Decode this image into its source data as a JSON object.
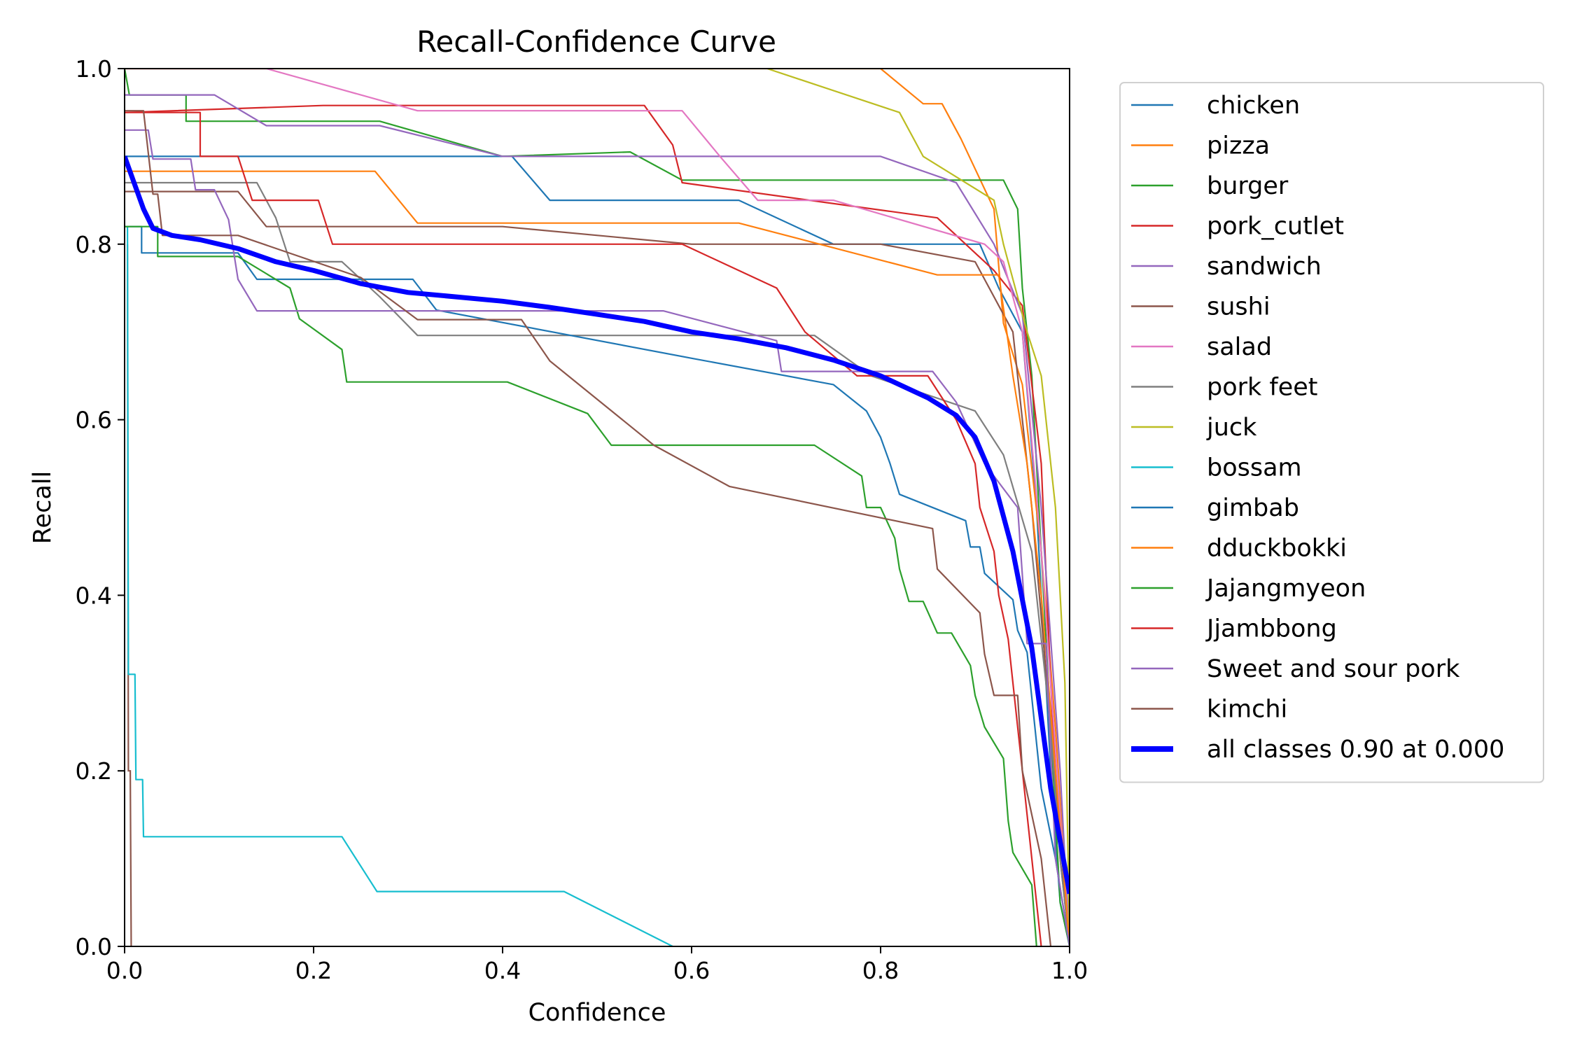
{
  "chart_data": {
    "type": "line",
    "title": "Recall-Confidence Curve",
    "xlabel": "Confidence",
    "ylabel": "Recall",
    "xlim": [
      0,
      1
    ],
    "ylim": [
      0,
      1
    ],
    "xticks": [
      "0.0",
      "0.2",
      "0.4",
      "0.6",
      "0.8",
      "1.0"
    ],
    "yticks": [
      "0.0",
      "0.2",
      "0.4",
      "0.6",
      "0.8",
      "1.0"
    ],
    "grid": false,
    "legend_position": "outside-right",
    "series": [
      {
        "name": "chicken",
        "color": "#1f77b4",
        "width": 1,
        "points": [
          [
            0,
            0.9
          ],
          [
            0.41,
            0.9
          ],
          [
            0.45,
            0.85
          ],
          [
            0.65,
            0.85
          ],
          [
            0.75,
            0.8
          ],
          [
            0.905,
            0.8
          ],
          [
            0.925,
            0.75
          ],
          [
            0.95,
            0.7
          ],
          [
            0.965,
            0.5
          ],
          [
            0.98,
            0.2
          ],
          [
            0.99,
            0.05
          ],
          [
            1.0,
            0.0
          ]
        ]
      },
      {
        "name": "pizza",
        "color": "#ff7f0e",
        "width": 1,
        "points": [
          [
            0,
            1.0
          ],
          [
            0.8,
            1.0
          ],
          [
            0.845,
            0.96
          ],
          [
            0.865,
            0.96
          ],
          [
            0.885,
            0.92
          ],
          [
            0.92,
            0.84
          ],
          [
            0.93,
            0.71
          ],
          [
            0.95,
            0.64
          ],
          [
            0.97,
            0.45
          ],
          [
            0.985,
            0.25
          ],
          [
            1.0,
            0.0
          ]
        ]
      },
      {
        "name": "burger",
        "color": "#2ca02c",
        "width": 1,
        "points": [
          [
            0,
            1.0
          ],
          [
            0.005,
            0.97
          ],
          [
            0.065,
            0.97
          ],
          [
            0.065,
            0.94
          ],
          [
            0.27,
            0.94
          ],
          [
            0.4,
            0.9
          ],
          [
            0.535,
            0.905
          ],
          [
            0.59,
            0.873
          ],
          [
            0.93,
            0.873
          ],
          [
            0.945,
            0.84
          ],
          [
            0.95,
            0.75
          ],
          [
            0.96,
            0.65
          ],
          [
            0.97,
            0.45
          ],
          [
            0.98,
            0.25
          ],
          [
            0.99,
            0.05
          ],
          [
            1.0,
            0.0
          ]
        ]
      },
      {
        "name": "pork_cutlet",
        "color": "#d62728",
        "width": 1,
        "points": [
          [
            0,
            0.95
          ],
          [
            0.21,
            0.958
          ],
          [
            0.55,
            0.958
          ],
          [
            0.58,
            0.913
          ],
          [
            0.59,
            0.87
          ],
          [
            0.86,
            0.83
          ],
          [
            0.92,
            0.77
          ],
          [
            0.95,
            0.73
          ],
          [
            0.97,
            0.55
          ],
          [
            0.98,
            0.3
          ],
          [
            0.99,
            0.1
          ],
          [
            1.0,
            0.0
          ]
        ]
      },
      {
        "name": "sandwich",
        "color": "#9467bd",
        "width": 1,
        "points": [
          [
            0,
            0.97
          ],
          [
            0.095,
            0.97
          ],
          [
            0.15,
            0.935
          ],
          [
            0.27,
            0.935
          ],
          [
            0.4,
            0.9
          ],
          [
            0.8,
            0.9
          ],
          [
            0.88,
            0.87
          ],
          [
            0.92,
            0.8
          ],
          [
            0.95,
            0.72
          ],
          [
            0.97,
            0.5
          ],
          [
            0.99,
            0.2
          ],
          [
            1.0,
            0.0
          ]
        ]
      },
      {
        "name": "sushi",
        "color": "#8c564b",
        "width": 1,
        "points": [
          [
            0,
            0.86
          ],
          [
            0.12,
            0.86
          ],
          [
            0.15,
            0.82
          ],
          [
            0.4,
            0.82
          ],
          [
            0.6,
            0.8
          ],
          [
            0.8,
            0.8
          ],
          [
            0.9,
            0.78
          ],
          [
            0.94,
            0.7
          ],
          [
            0.96,
            0.5
          ],
          [
            0.98,
            0.25
          ],
          [
            1.0,
            0.0
          ]
        ]
      },
      {
        "name": "salad",
        "color": "#e377c2",
        "width": 1,
        "points": [
          [
            0,
            1.0
          ],
          [
            0.15,
            1.0
          ],
          [
            0.31,
            0.952
          ],
          [
            0.59,
            0.952
          ],
          [
            0.63,
            0.9
          ],
          [
            0.67,
            0.85
          ],
          [
            0.75,
            0.85
          ],
          [
            0.91,
            0.8
          ],
          [
            0.93,
            0.78
          ],
          [
            0.95,
            0.7
          ],
          [
            0.97,
            0.45
          ],
          [
            0.99,
            0.15
          ],
          [
            1.0,
            0.0
          ]
        ]
      },
      {
        "name": "pork feet",
        "color": "#7f7f7f",
        "width": 1,
        "points": [
          [
            0,
            0.87
          ],
          [
            0.14,
            0.87
          ],
          [
            0.16,
            0.83
          ],
          [
            0.175,
            0.78
          ],
          [
            0.23,
            0.78
          ],
          [
            0.27,
            0.74
          ],
          [
            0.31,
            0.696
          ],
          [
            0.73,
            0.696
          ],
          [
            0.79,
            0.65
          ],
          [
            0.9,
            0.61
          ],
          [
            0.93,
            0.56
          ],
          [
            0.96,
            0.45
          ],
          [
            0.98,
            0.25
          ],
          [
            0.99,
            0.1
          ],
          [
            1.0,
            0.0
          ]
        ]
      },
      {
        "name": "juck",
        "color": "#bcbd22",
        "width": 1,
        "points": [
          [
            0.68,
            1.0
          ],
          [
            0.82,
            0.95
          ],
          [
            0.845,
            0.9
          ],
          [
            0.92,
            0.85
          ],
          [
            0.93,
            0.8
          ],
          [
            0.955,
            0.7
          ],
          [
            0.97,
            0.65
          ],
          [
            0.985,
            0.5
          ],
          [
            0.995,
            0.3
          ],
          [
            1.0,
            0.0
          ]
        ]
      },
      {
        "name": "bossam",
        "color": "#17becf",
        "width": 1,
        "points": [
          [
            0.003,
            0.82
          ],
          [
            0.004,
            0.31
          ],
          [
            0.011,
            0.31
          ],
          [
            0.012,
            0.19
          ],
          [
            0.019,
            0.19
          ],
          [
            0.02,
            0.125
          ],
          [
            0.23,
            0.125
          ],
          [
            0.267,
            0.0625
          ],
          [
            0.465,
            0.0625
          ],
          [
            0.58,
            0.0
          ]
        ]
      },
      {
        "name": "gimbab",
        "color": "#1f77b4",
        "width": 1,
        "points": [
          [
            0,
            0.82
          ],
          [
            0.018,
            0.82
          ],
          [
            0.018,
            0.79
          ],
          [
            0.12,
            0.79
          ],
          [
            0.14,
            0.76
          ],
          [
            0.305,
            0.76
          ],
          [
            0.33,
            0.725
          ],
          [
            0.6,
            0.67
          ],
          [
            0.75,
            0.64
          ],
          [
            0.785,
            0.61
          ],
          [
            0.8,
            0.58
          ],
          [
            0.81,
            0.55
          ],
          [
            0.82,
            0.515
          ],
          [
            0.89,
            0.485
          ],
          [
            0.895,
            0.455
          ],
          [
            0.905,
            0.455
          ],
          [
            0.91,
            0.425
          ],
          [
            0.94,
            0.395
          ],
          [
            0.945,
            0.36
          ],
          [
            0.955,
            0.335
          ],
          [
            0.97,
            0.18
          ],
          [
            0.985,
            0.1
          ],
          [
            1.0,
            0.0
          ]
        ]
      },
      {
        "name": "dduckbokki",
        "color": "#ff7f0e",
        "width": 1,
        "points": [
          [
            0,
            0.883
          ],
          [
            0.265,
            0.883
          ],
          [
            0.31,
            0.824
          ],
          [
            0.65,
            0.824
          ],
          [
            0.86,
            0.765
          ],
          [
            0.925,
            0.765
          ],
          [
            0.94,
            0.65
          ],
          [
            0.955,
            0.55
          ],
          [
            0.97,
            0.4
          ],
          [
            0.985,
            0.2
          ],
          [
            1.0,
            0.0
          ]
        ]
      },
      {
        "name": "Jajangmyeon",
        "color": "#2ca02c",
        "width": 1,
        "points": [
          [
            0,
            0.82
          ],
          [
            0.035,
            0.82
          ],
          [
            0.035,
            0.786
          ],
          [
            0.12,
            0.786
          ],
          [
            0.175,
            0.75
          ],
          [
            0.185,
            0.715
          ],
          [
            0.23,
            0.68
          ],
          [
            0.235,
            0.643
          ],
          [
            0.405,
            0.643
          ],
          [
            0.49,
            0.607
          ],
          [
            0.515,
            0.571
          ],
          [
            0.73,
            0.571
          ],
          [
            0.78,
            0.536
          ],
          [
            0.785,
            0.5
          ],
          [
            0.8,
            0.5
          ],
          [
            0.815,
            0.465
          ],
          [
            0.82,
            0.43
          ],
          [
            0.83,
            0.393
          ],
          [
            0.845,
            0.393
          ],
          [
            0.86,
            0.357
          ],
          [
            0.875,
            0.357
          ],
          [
            0.895,
            0.32
          ],
          [
            0.9,
            0.286
          ],
          [
            0.91,
            0.25
          ],
          [
            0.93,
            0.214
          ],
          [
            0.935,
            0.143
          ],
          [
            0.94,
            0.107
          ],
          [
            0.96,
            0.07
          ],
          [
            0.965,
            0.0
          ]
        ]
      },
      {
        "name": "Jjambbong",
        "color": "#d62728",
        "width": 1,
        "points": [
          [
            0,
            0.95
          ],
          [
            0.08,
            0.95
          ],
          [
            0.08,
            0.9
          ],
          [
            0.12,
            0.9
          ],
          [
            0.135,
            0.85
          ],
          [
            0.205,
            0.85
          ],
          [
            0.22,
            0.8
          ],
          [
            0.59,
            0.8
          ],
          [
            0.69,
            0.75
          ],
          [
            0.72,
            0.7
          ],
          [
            0.775,
            0.65
          ],
          [
            0.85,
            0.65
          ],
          [
            0.88,
            0.6
          ],
          [
            0.9,
            0.55
          ],
          [
            0.905,
            0.5
          ],
          [
            0.92,
            0.45
          ],
          [
            0.925,
            0.4
          ],
          [
            0.935,
            0.35
          ],
          [
            0.945,
            0.25
          ],
          [
            0.97,
            0.0
          ]
        ]
      },
      {
        "name": "Sweet and sour pork",
        "color": "#9467bd",
        "width": 1,
        "points": [
          [
            0,
            0.93
          ],
          [
            0.025,
            0.93
          ],
          [
            0.03,
            0.897
          ],
          [
            0.07,
            0.897
          ],
          [
            0.075,
            0.862
          ],
          [
            0.095,
            0.862
          ],
          [
            0.11,
            0.828
          ],
          [
            0.12,
            0.76
          ],
          [
            0.14,
            0.724
          ],
          [
            0.57,
            0.724
          ],
          [
            0.69,
            0.69
          ],
          [
            0.695,
            0.655
          ],
          [
            0.855,
            0.655
          ],
          [
            0.88,
            0.62
          ],
          [
            0.91,
            0.55
          ],
          [
            0.945,
            0.5
          ],
          [
            0.955,
            0.345
          ],
          [
            0.975,
            0.345
          ],
          [
            0.985,
            0.1
          ],
          [
            1.0,
            0.0
          ]
        ]
      },
      {
        "name": "kimchi",
        "color": "#8c564b",
        "width": 1,
        "points": [
          [
            0,
            0.952
          ],
          [
            0.02,
            0.952
          ],
          [
            0.03,
            0.857
          ],
          [
            0.035,
            0.857
          ],
          [
            0.04,
            0.81
          ],
          [
            0.12,
            0.81
          ],
          [
            0.25,
            0.762
          ],
          [
            0.31,
            0.714
          ],
          [
            0.42,
            0.714
          ],
          [
            0.45,
            0.667
          ],
          [
            0.56,
            0.571
          ],
          [
            0.64,
            0.524
          ],
          [
            0.855,
            0.476
          ],
          [
            0.86,
            0.43
          ],
          [
            0.905,
            0.38
          ],
          [
            0.91,
            0.333
          ],
          [
            0.92,
            0.286
          ],
          [
            0.945,
            0.286
          ],
          [
            0.95,
            0.2
          ],
          [
            0.97,
            0.1
          ],
          [
            0.98,
            0.0
          ]
        ]
      },
      {
        "name": "all classes 0.90 at 0.000",
        "color": "#0000ff",
        "width": 6,
        "points": [
          [
            0,
            0.9
          ],
          [
            0.01,
            0.87
          ],
          [
            0.02,
            0.84
          ],
          [
            0.03,
            0.818
          ],
          [
            0.05,
            0.81
          ],
          [
            0.08,
            0.805
          ],
          [
            0.12,
            0.795
          ],
          [
            0.16,
            0.78
          ],
          [
            0.2,
            0.77
          ],
          [
            0.25,
            0.755
          ],
          [
            0.3,
            0.745
          ],
          [
            0.35,
            0.74
          ],
          [
            0.4,
            0.735
          ],
          [
            0.45,
            0.728
          ],
          [
            0.5,
            0.72
          ],
          [
            0.55,
            0.712
          ],
          [
            0.6,
            0.7
          ],
          [
            0.65,
            0.692
          ],
          [
            0.7,
            0.682
          ],
          [
            0.75,
            0.668
          ],
          [
            0.8,
            0.65
          ],
          [
            0.85,
            0.625
          ],
          [
            0.88,
            0.605
          ],
          [
            0.9,
            0.58
          ],
          [
            0.92,
            0.53
          ],
          [
            0.94,
            0.45
          ],
          [
            0.96,
            0.34
          ],
          [
            0.97,
            0.26
          ],
          [
            0.98,
            0.18
          ],
          [
            0.99,
            0.12
          ],
          [
            1.0,
            0.06
          ]
        ]
      }
    ],
    "bossam_kimchi_spike": {
      "color": "#8c564b"
    }
  }
}
